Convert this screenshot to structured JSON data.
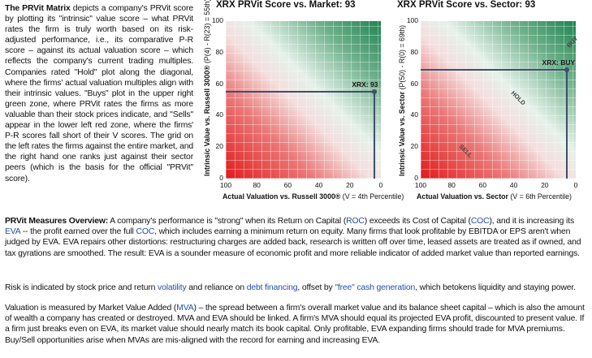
{
  "intro": {
    "title": "The PRVit Matrix",
    "text": " depicts a company's PRVit score by plotting its \"intrinsic\" value score – what PRVit rates the firm is truly worth based on its risk-adjusted performance, i.e., its comparative P-R score – against its actual valuation score – which reflects the company's current trading multiples. Companies rated \"Hold\" plot along the diagonal, where the firms' actual valuation multiples align with their intrinsic values. \"Buys\" plot in the upper right green zone, where PRVit rates the firms as more valuable than their stock prices indicate, and \"Sells\" appear in the lower left red zone, where the firms' P-R scores fall short of their V scores. The grid on the left rates the firms against the entire market, and the right hand one ranks just against their sector peers (which is the basis for the official \"PRVit\" score)."
  },
  "chart_market": {
    "title": "XRX PRVit Score vs. Market: 93",
    "xlabel_bold": "Actual Valuation vs. Russell 3000®",
    "xlabel_rest": " (V = 4th Percentile)",
    "ylabel_bold": "Intrinsic Value vs. Russell 3000®",
    "ylabel_rest": " (P(4) - R(23) = 55th)",
    "point_label": "XRX: 93",
    "x_ticks": [
      "100",
      "80",
      "60",
      "40",
      "20",
      "0"
    ],
    "y_ticks": [
      "100",
      "80",
      "60",
      "40",
      "20",
      "0"
    ]
  },
  "chart_sector": {
    "title": "XRX PRVit Score vs. Sector: 93",
    "xlabel_bold": "Actual Valuation vs. Sector",
    "xlabel_rest": " (V = 6th Percentile)",
    "ylabel_bold": "Intrinsic Value vs. Sector",
    "ylabel_rest": " (P(50) - R(0) = 69th)",
    "point_label": "XRX: BUY",
    "zone_buy": "BUY",
    "zone_hold": "HOLD",
    "zone_sell": "SELL",
    "x_ticks": [
      "100",
      "80",
      "60",
      "40",
      "20",
      "0"
    ],
    "y_ticks": [
      "100",
      "80",
      "60",
      "40",
      "20",
      "0"
    ]
  },
  "chart_data": [
    {
      "type": "scatter",
      "title": "XRX PRVit Score vs. Market: 93",
      "xlabel": "Actual Valuation vs. Russell 3000® (V = 4th Percentile)",
      "ylabel": "Intrinsic Value vs. Russell 3000® (P(4) - R(23) = 55th)",
      "xlim": [
        100,
        0
      ],
      "ylim": [
        0,
        100
      ],
      "points": [
        {
          "label": "XRX: 93",
          "x": 4,
          "y": 55
        }
      ]
    },
    {
      "type": "scatter",
      "title": "XRX PRVit Score vs. Sector: 93",
      "xlabel": "Actual Valuation vs. Sector (V = 6th Percentile)",
      "ylabel": "Intrinsic Value vs. Sector (P(50) - R(0) = 69th)",
      "xlim": [
        100,
        0
      ],
      "ylim": [
        0,
        100
      ],
      "points": [
        {
          "label": "XRX: BUY",
          "x": 6,
          "y": 69
        }
      ],
      "zones": [
        "BUY",
        "HOLD",
        "SELL"
      ]
    }
  ],
  "measures": {
    "title": "PRVit Measures Overview:",
    "t1": " A company's performance is \"strong\" when its Return on Capital (",
    "roc": "ROC",
    "t2": ") exceeds its Cost of Capital (",
    "coc": "COC",
    "t3": "), and it is increasing its ",
    "eva": "EVA",
    "t4": " -- the profit earned over the full ",
    "coc2": "COC",
    "t5": ", which includes earning a minimum return on equity. Many firms that look profitable by EBITDA or EPS aren't when judged by EVA. EVA repairs other distortions: restructuring charges are added back, research is written off over time, leased assets are treated as if owned, and tax gyrations are smoothed. The result: EVA is a sounder measure of economic profit and more reliable indicator of added market value than reported earnings."
  },
  "risk": {
    "t1": "Risk is indicated by stock price and return ",
    "volatility": "volatility",
    "t2": " and reliance on ",
    "debt": "debt financing",
    "t3": ", offset by ",
    "free": "\"free\" cash generation",
    "t4": ", which betokens liquidity and staying power."
  },
  "valuation": {
    "t1": "Valuation is measured by Market Value Added (",
    "mva": "MVA",
    "t2": ") – the spread between a firm's overall market value and its balance sheet capital – which is also the amount of wealth a company has created or destroyed. MVA and EVA should be linked. A firm's MVA should equal its projected EVA profit, discounted to present value. If a firm just breaks even on EVA, its market value should nearly match its book capital. Only profitable, EVA expanding firms should trade for MVA premiums. Buy/Sell opportunities arise when MVAs are mis-aligned with the record for earning and increasing EVA."
  }
}
